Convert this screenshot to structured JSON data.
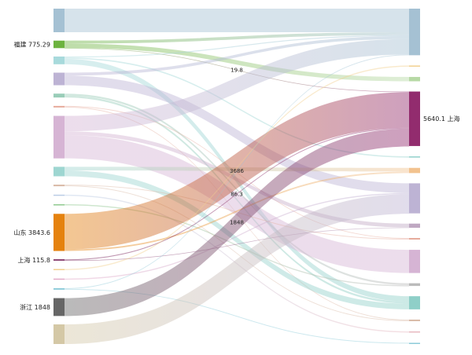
{
  "chart_data": {
    "type": "sankey",
    "left_nodes": [
      {
        "label": "",
        "value_text": "",
        "color": "#a5c1d3"
      },
      {
        "label": "福建",
        "value_text": "775.29",
        "color": "#6db33f"
      },
      {
        "label": "",
        "value_text": "",
        "color": "#a8dadc"
      },
      {
        "label": "",
        "value_text": "",
        "color": "#bdb3d4"
      },
      {
        "label": "",
        "value_text": "",
        "color": "#99cdb8"
      },
      {
        "label": "",
        "value_text": "",
        "color": "#e6a99a"
      },
      {
        "label": "",
        "value_text": "",
        "color": "#d6b4d4"
      },
      {
        "label": "",
        "value_text": "",
        "color": "#9ed6d1"
      },
      {
        "label": "",
        "value_text": "",
        "color": "#d8b8a4"
      },
      {
        "label": "",
        "value_text": "",
        "color": "#b9cde6"
      },
      {
        "label": "",
        "value_text": "",
        "color": "#8fc98f"
      },
      {
        "label": "山东",
        "value_text": "3843.6",
        "color": "#e5820e"
      },
      {
        "label": "上海",
        "value_text": "115.8",
        "color": "#6b0f4a"
      },
      {
        "label": "",
        "value_text": "",
        "color": "#f2d08f"
      },
      {
        "label": "",
        "value_text": "",
        "color": "#e3a9c8"
      },
      {
        "label": "",
        "value_text": "",
        "color": "#8ccbd9"
      },
      {
        "label": "浙江",
        "value_text": "1848",
        "color": "#666666"
      },
      {
        "label": "",
        "value_text": "",
        "color": "#d4c8a6"
      }
    ],
    "right_nodes": [
      {
        "label": "",
        "value_text": "",
        "color": "#a5c1d3"
      },
      {
        "label": "",
        "value_text": "",
        "color": "#f2d08f"
      },
      {
        "label": "",
        "value_text": "",
        "color": "#b7d9a5"
      },
      {
        "label": "上海",
        "value_text": "5640.1",
        "color": "#922c6e"
      },
      {
        "label": "",
        "value_text": "",
        "color": "#9ed6d1"
      },
      {
        "label": "",
        "value_text": "",
        "color": "#f2c28f"
      },
      {
        "label": "",
        "value_text": "",
        "color": "#bdb3d4"
      },
      {
        "label": "",
        "value_text": "",
        "color": "#bfa8c2"
      },
      {
        "label": "",
        "value_text": "",
        "color": "#e6a99a"
      },
      {
        "label": "",
        "value_text": "",
        "color": "#d6b4d4"
      },
      {
        "label": "",
        "value_text": "",
        "color": "#bbbbbb"
      },
      {
        "label": "",
        "value_text": "",
        "color": "#8fcfc8"
      },
      {
        "label": "",
        "value_text": "",
        "color": "#d8b8a4"
      },
      {
        "label": "",
        "value_text": "",
        "color": "#e8b8c0"
      },
      {
        "label": "",
        "value_text": "",
        "color": "#8ccbd9"
      }
    ],
    "links": [
      {
        "source": 0,
        "target": 0,
        "value": 2440,
        "label": ""
      },
      {
        "source": 1,
        "target": 0,
        "value": 305,
        "label": ""
      },
      {
        "source": 1,
        "target": 2,
        "value": 450,
        "label": ""
      },
      {
        "source": 1,
        "target": 3,
        "value": 19.8,
        "label": "19.8"
      },
      {
        "source": 2,
        "target": 0,
        "value": 100,
        "label": ""
      },
      {
        "source": 2,
        "target": 4,
        "value": 140,
        "label": ""
      },
      {
        "source": 2,
        "target": 11,
        "value": 560,
        "label": ""
      },
      {
        "source": 3,
        "target": 0,
        "value": 300,
        "label": ""
      },
      {
        "source": 3,
        "target": 6,
        "value": 1000,
        "label": ""
      },
      {
        "source": 4,
        "target": 10,
        "value": 200,
        "label": ""
      },
      {
        "source": 4,
        "target": 11,
        "value": 200,
        "label": ""
      },
      {
        "source": 5,
        "target": 8,
        "value": 80,
        "label": ""
      },
      {
        "source": 5,
        "target": 12,
        "value": 80,
        "label": ""
      },
      {
        "source": 6,
        "target": 0,
        "value": 1600,
        "label": ""
      },
      {
        "source": 6,
        "target": 7,
        "value": 400,
        "label": ""
      },
      {
        "source": 6,
        "target": 9,
        "value": 2400,
        "label": ""
      },
      {
        "source": 7,
        "target": 5,
        "value": 380,
        "label": ""
      },
      {
        "source": 7,
        "target": 11,
        "value": 600,
        "label": ""
      },
      {
        "source": 8,
        "target": 8,
        "value": 80,
        "label": ""
      },
      {
        "source": 8,
        "target": 12,
        "value": 80,
        "label": ""
      },
      {
        "source": 9,
        "target": 13,
        "value": 80,
        "label": ""
      },
      {
        "source": 10,
        "target": 10,
        "value": 80,
        "label": ""
      },
      {
        "source": 11,
        "target": 3,
        "value": 3686,
        "label": "3686"
      },
      {
        "source": 11,
        "target": 5,
        "value": 157.6,
        "label": ""
      },
      {
        "source": 12,
        "target": 3,
        "value": 86.3,
        "label": "86.3"
      },
      {
        "source": 12,
        "target": 7,
        "value": 29.5,
        "label": ""
      },
      {
        "source": 13,
        "target": 1,
        "value": 80,
        "label": ""
      },
      {
        "source": 14,
        "target": 6,
        "value": 80,
        "label": ""
      },
      {
        "source": 15,
        "target": 0,
        "value": 80,
        "label": ""
      },
      {
        "source": 15,
        "target": 14,
        "value": 80,
        "label": ""
      },
      {
        "source": 16,
        "target": 3,
        "value": 1848,
        "label": "1848"
      },
      {
        "source": 17,
        "target": 6,
        "value": 2030,
        "label": ""
      }
    ]
  }
}
